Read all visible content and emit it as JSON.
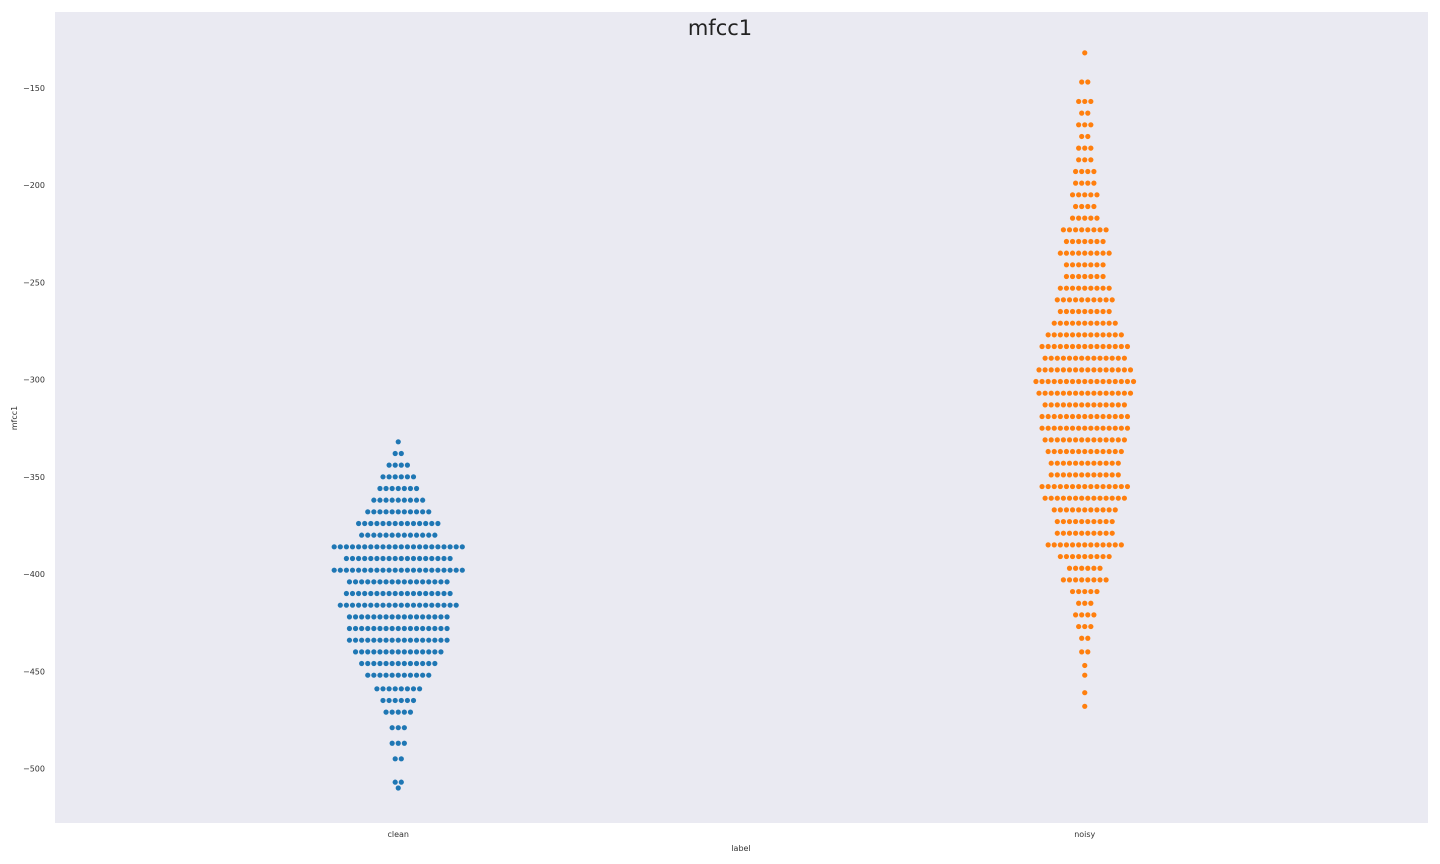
{
  "chart_data": {
    "type": "swarm",
    "title": "mfcc1",
    "xlabel": "label",
    "ylabel": "mfcc1",
    "categories": [
      "clean",
      "noisy"
    ],
    "ylim": [
      -528,
      -111
    ],
    "yticks": [
      -150,
      -200,
      -250,
      -300,
      -350,
      -400,
      -450,
      -500
    ],
    "yticks_text": [
      "−150",
      "−200",
      "−250",
      "−300",
      "−350",
      "−400",
      "−450",
      "−500"
    ],
    "grid": false,
    "background": "#eaeaf2",
    "series": [
      {
        "category": "clean",
        "color": "#1f77b4",
        "density": [
          [
            -510,
            1
          ],
          [
            -507,
            2
          ],
          [
            -495,
            2
          ],
          [
            -487,
            3
          ],
          [
            -479,
            3
          ],
          [
            -471,
            5
          ],
          [
            -465,
            6
          ],
          [
            -459,
            8
          ],
          [
            -452,
            11
          ],
          [
            -446,
            13
          ],
          [
            -440,
            15
          ],
          [
            -434,
            17
          ],
          [
            -428,
            17
          ],
          [
            -422,
            17
          ],
          [
            -416,
            20
          ],
          [
            -410,
            18
          ],
          [
            -404,
            17
          ],
          [
            -398,
            22
          ],
          [
            -392,
            18
          ],
          [
            -386,
            22
          ],
          [
            -380,
            13
          ],
          [
            -374,
            14
          ],
          [
            -368,
            11
          ],
          [
            -362,
            9
          ],
          [
            -356,
            7
          ],
          [
            -350,
            6
          ],
          [
            -344,
            4
          ],
          [
            -338,
            2
          ],
          [
            -332,
            1
          ]
        ]
      },
      {
        "category": "noisy",
        "color": "#ff7f0e",
        "density": [
          [
            -468,
            1
          ],
          [
            -461,
            1
          ],
          [
            -452,
            1
          ],
          [
            -447,
            1
          ],
          [
            -440,
            2
          ],
          [
            -433,
            2
          ],
          [
            -427,
            3
          ],
          [
            -421,
            4
          ],
          [
            -415,
            3
          ],
          [
            -409,
            5
          ],
          [
            -403,
            8
          ],
          [
            -397,
            6
          ],
          [
            -391,
            9
          ],
          [
            -385,
            13
          ],
          [
            -379,
            10
          ],
          [
            -373,
            10
          ],
          [
            -367,
            11
          ],
          [
            -361,
            14
          ],
          [
            -355,
            15
          ],
          [
            -349,
            12
          ],
          [
            -343,
            12
          ],
          [
            -337,
            13
          ],
          [
            -331,
            14
          ],
          [
            -325,
            15
          ],
          [
            -319,
            15
          ],
          [
            -313,
            14
          ],
          [
            -307,
            16
          ],
          [
            -301,
            17
          ],
          [
            -295,
            16
          ],
          [
            -289,
            14
          ],
          [
            -283,
            15
          ],
          [
            -277,
            13
          ],
          [
            -271,
            11
          ],
          [
            -265,
            9
          ],
          [
            -259,
            10
          ],
          [
            -253,
            9
          ],
          [
            -247,
            7
          ],
          [
            -241,
            7
          ],
          [
            -235,
            9
          ],
          [
            -229,
            7
          ],
          [
            -223,
            8
          ],
          [
            -217,
            5
          ],
          [
            -211,
            4
          ],
          [
            -205,
            5
          ],
          [
            -199,
            4
          ],
          [
            -193,
            4
          ],
          [
            -187,
            3
          ],
          [
            -181,
            3
          ],
          [
            -175,
            2
          ],
          [
            -169,
            3
          ],
          [
            -163,
            2
          ],
          [
            -157,
            3
          ],
          [
            -147,
            2
          ],
          [
            -132,
            1
          ]
        ]
      }
    ]
  }
}
